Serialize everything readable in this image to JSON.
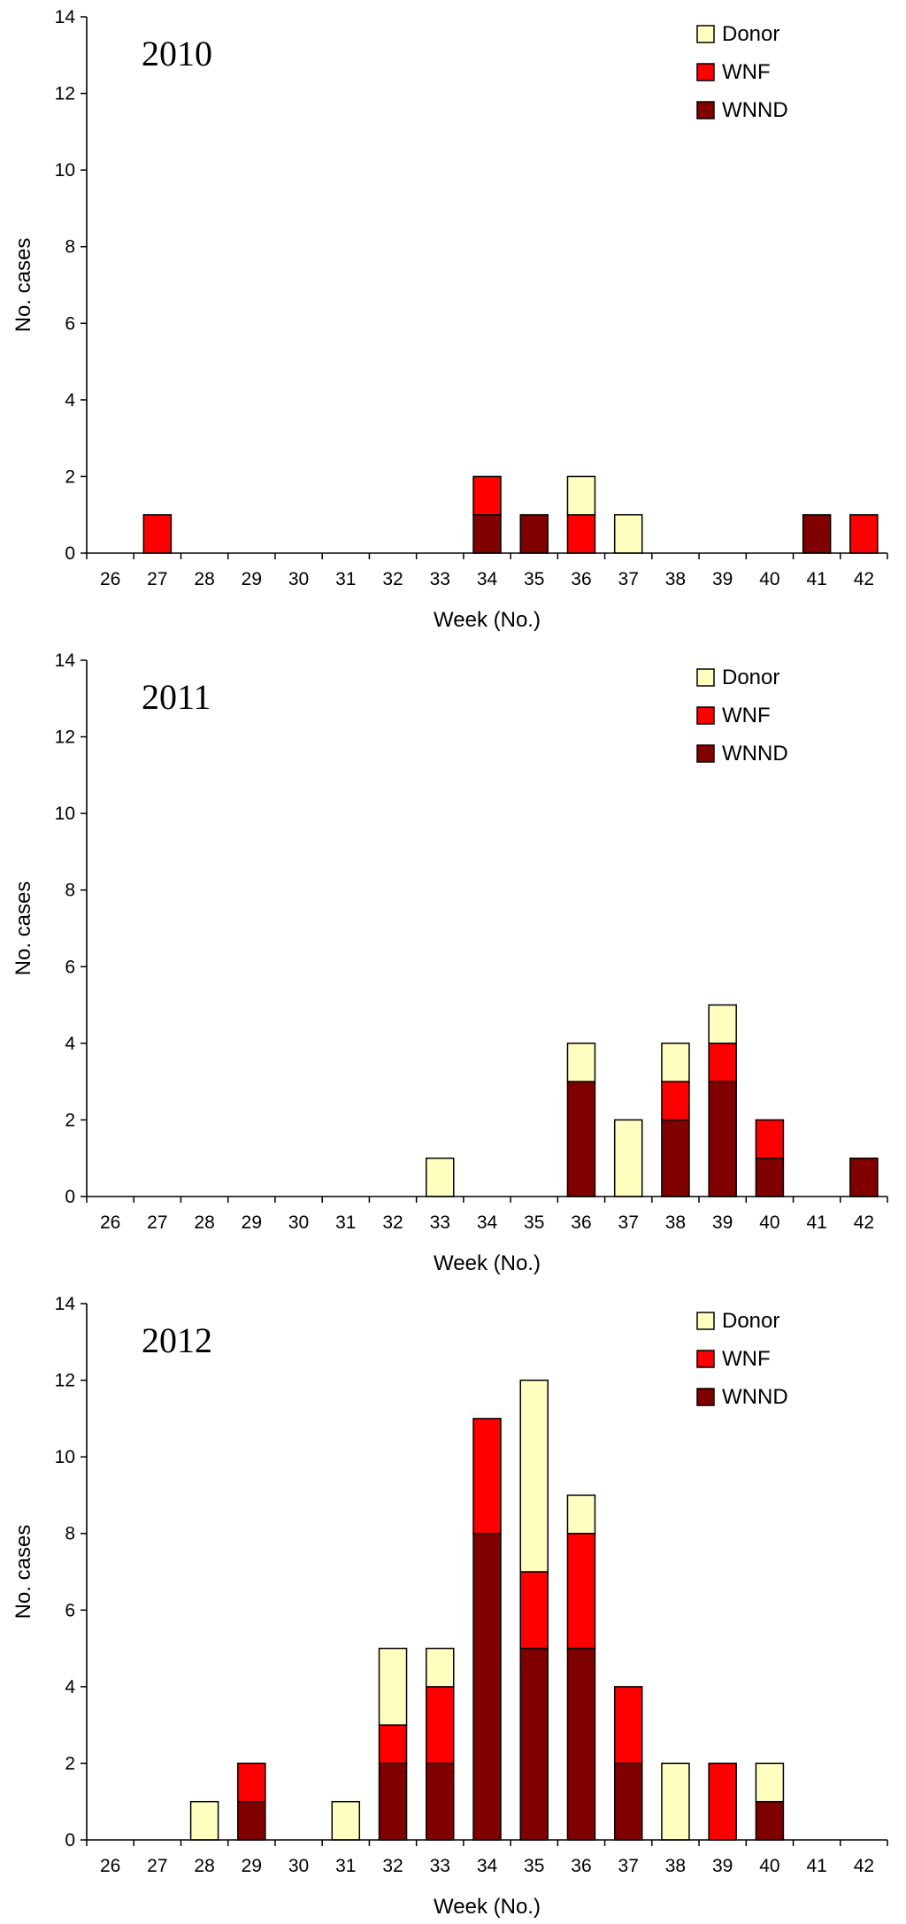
{
  "colors": {
    "donor": "#ffffc0",
    "wnf": "#ff0000",
    "wnnd": "#800000",
    "axis": "#000000"
  },
  "chart_data": [
    {
      "type": "bar",
      "stacked": true,
      "title": "2010",
      "xlabel": "Week (No.)",
      "ylabel": "No. cases",
      "ylim": [
        0,
        14
      ],
      "yticks": [
        0,
        2,
        4,
        6,
        8,
        10,
        12,
        14
      ],
      "legend": {
        "position": "top-right",
        "entries": [
          "Donor",
          "WNF",
          "WNND"
        ]
      },
      "categories": [
        "26",
        "27",
        "28",
        "29",
        "30",
        "31",
        "32",
        "33",
        "34",
        "35",
        "36",
        "37",
        "38",
        "39",
        "40",
        "41",
        "42"
      ],
      "series": [
        {
          "name": "WNND",
          "values": [
            0,
            0,
            0,
            0,
            0,
            0,
            0,
            0,
            1,
            1,
            0,
            0,
            0,
            0,
            0,
            1,
            0
          ]
        },
        {
          "name": "WNF",
          "values": [
            0,
            1,
            0,
            0,
            0,
            0,
            0,
            0,
            1,
            0,
            1,
            0,
            0,
            0,
            0,
            0,
            1
          ]
        },
        {
          "name": "Donor",
          "values": [
            0,
            0,
            0,
            0,
            0,
            0,
            0,
            0,
            0,
            0,
            1,
            1,
            0,
            0,
            0,
            0,
            0
          ]
        }
      ]
    },
    {
      "type": "bar",
      "stacked": true,
      "title": "2011",
      "xlabel": "Week (No.)",
      "ylabel": "No. cases",
      "ylim": [
        0,
        14
      ],
      "yticks": [
        0,
        2,
        4,
        6,
        8,
        10,
        12,
        14
      ],
      "legend": {
        "position": "top-right",
        "entries": [
          "Donor",
          "WNF",
          "WNND"
        ]
      },
      "categories": [
        "26",
        "27",
        "28",
        "29",
        "30",
        "31",
        "32",
        "33",
        "34",
        "35",
        "36",
        "37",
        "38",
        "39",
        "40",
        "41",
        "42"
      ],
      "series": [
        {
          "name": "WNND",
          "values": [
            0,
            0,
            0,
            0,
            0,
            0,
            0,
            0,
            0,
            0,
            3,
            0,
            2,
            3,
            1,
            0,
            1
          ]
        },
        {
          "name": "WNF",
          "values": [
            0,
            0,
            0,
            0,
            0,
            0,
            0,
            0,
            0,
            0,
            0,
            0,
            1,
            1,
            1,
            0,
            0
          ]
        },
        {
          "name": "Donor",
          "values": [
            0,
            0,
            0,
            0,
            0,
            0,
            0,
            1,
            0,
            0,
            1,
            2,
            1,
            1,
            0,
            0,
            0
          ]
        }
      ]
    },
    {
      "type": "bar",
      "stacked": true,
      "title": "2012",
      "xlabel": "Week (No.)",
      "ylabel": "No. cases",
      "ylim": [
        0,
        14
      ],
      "yticks": [
        0,
        2,
        4,
        6,
        8,
        10,
        12,
        14
      ],
      "legend": {
        "position": "top-right",
        "entries": [
          "Donor",
          "WNF",
          "WNND"
        ]
      },
      "categories": [
        "26",
        "27",
        "28",
        "29",
        "30",
        "31",
        "32",
        "33",
        "34",
        "35",
        "36",
        "37",
        "38",
        "39",
        "40",
        "41",
        "42"
      ],
      "series": [
        {
          "name": "WNND",
          "values": [
            0,
            0,
            0,
            1,
            0,
            0,
            2,
            2,
            8,
            5,
            5,
            2,
            0,
            0,
            1,
            0,
            0
          ]
        },
        {
          "name": "WNF",
          "values": [
            0,
            0,
            0,
            1,
            0,
            0,
            1,
            2,
            3,
            2,
            3,
            2,
            0,
            2,
            0,
            0,
            0
          ]
        },
        {
          "name": "Donor",
          "values": [
            0,
            0,
            1,
            0,
            0,
            1,
            2,
            1,
            0,
            5,
            1,
            0,
            2,
            0,
            1,
            0,
            0
          ]
        }
      ]
    }
  ]
}
